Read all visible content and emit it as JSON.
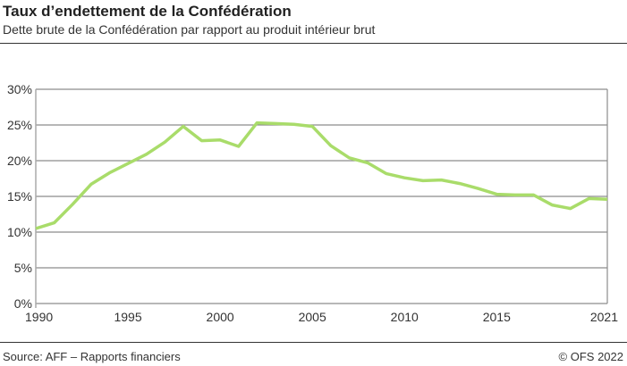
{
  "header": {
    "title": "Taux d’endettement de la Confédération",
    "subtitle": "Dette brute de la Confédération par rapport au produit intérieur brut"
  },
  "footer": {
    "source": "Source: AFF –  Rapports financiers",
    "copyright": "© OFS 2022"
  },
  "chart_data": {
    "type": "line",
    "title": "Taux d’endettement de la Confédération",
    "xlabel": "",
    "ylabel": "",
    "x": [
      1990,
      1991,
      1992,
      1993,
      1994,
      1995,
      1996,
      1997,
      1998,
      1999,
      2000,
      2001,
      2002,
      2003,
      2004,
      2005,
      2006,
      2007,
      2008,
      2009,
      2010,
      2011,
      2012,
      2013,
      2014,
      2015,
      2016,
      2017,
      2018,
      2019,
      2020,
      2021
    ],
    "series": [
      {
        "name": "Taux d’endettement",
        "color": "#a9dc6a",
        "values": [
          10.5,
          11.3,
          13.9,
          16.7,
          18.3,
          19.6,
          20.9,
          22.6,
          24.8,
          22.8,
          22.9,
          22.0,
          25.3,
          25.2,
          25.1,
          24.8,
          22.1,
          20.4,
          19.7,
          18.2,
          17.6,
          17.2,
          17.3,
          16.8,
          16.1,
          15.3,
          15.2,
          15.2,
          13.8,
          13.3,
          14.7,
          14.6
        ]
      }
    ],
    "xlim": [
      1990,
      2021
    ],
    "ylim": [
      0,
      30
    ],
    "xticks": [
      "1990",
      "1995",
      "2000",
      "2005",
      "2010",
      "2015",
      "2021"
    ],
    "yticks": [
      "0%",
      "5%",
      "10%",
      "15%",
      "20%",
      "25%",
      "30%"
    ],
    "grid": true,
    "legend": "none"
  }
}
